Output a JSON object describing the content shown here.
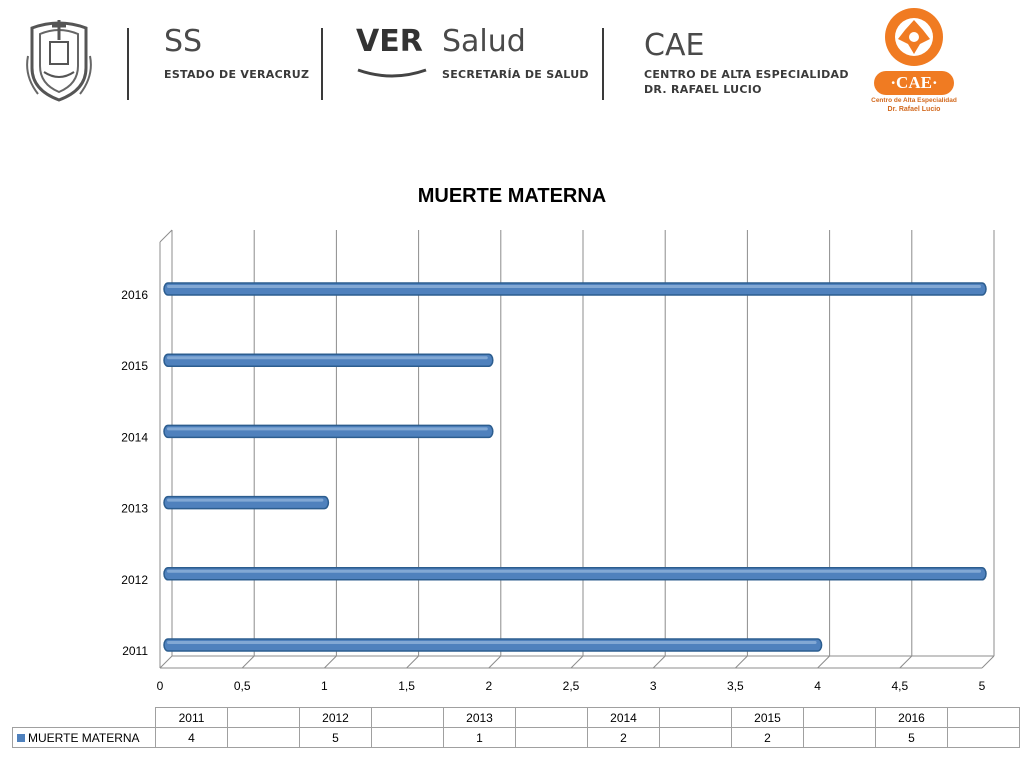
{
  "header": {
    "ss": {
      "big": "SS",
      "small": "ESTADO DE VERACRUZ"
    },
    "ver": {
      "big_bold": "VER",
      "big": "Salud",
      "small": "SECRETARÍA DE SALUD"
    },
    "cae": {
      "big": "CAE",
      "line1": "CENTRO DE ALTA ESPECIALIDAD",
      "line2": "DR. RAFAEL LUCIO"
    },
    "badge": {
      "label": "CAE",
      "line1": "Centro de Alta Especialidad",
      "line2": "Dr. Rafael Lucio"
    }
  },
  "colors": {
    "bar": "#4f81bd",
    "brand_orange": "#f07b22",
    "grid": "#8c8c8c"
  },
  "chart_data": {
    "type": "bar",
    "orientation": "horizontal",
    "title": "MUERTE MATERNA",
    "categories": [
      "2011",
      "2012",
      "2013",
      "2014",
      "2015",
      "2016"
    ],
    "series": [
      {
        "name": "MUERTE MATERNA",
        "values": [
          4,
          5,
          1,
          2,
          2,
          5
        ]
      }
    ],
    "xlim": [
      0,
      5
    ],
    "x_ticks": [
      "0",
      "0,5",
      "1",
      "1,5",
      "2",
      "2,5",
      "3",
      "3,5",
      "4",
      "4,5",
      "5"
    ],
    "grid": true,
    "legend": "data-table"
  }
}
